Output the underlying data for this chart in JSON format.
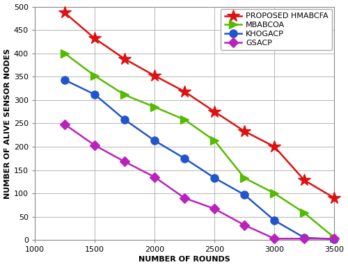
{
  "xlabel": "NUMBER OF ROUNDS",
  "ylabel": "NUMBER OF ALIVE SENSOR NODES",
  "xlim": [
    1000,
    3500
  ],
  "ylim": [
    0,
    500
  ],
  "xticks": [
    1000,
    1500,
    2000,
    2500,
    3000,
    3500
  ],
  "yticks": [
    0,
    50,
    100,
    150,
    200,
    250,
    300,
    350,
    400,
    450,
    500
  ],
  "series": [
    {
      "label": "PROPOSED HMABCFA",
      "color": "#dd1111",
      "marker": "*",
      "markersize": 13,
      "linewidth": 1.8,
      "x": [
        1250,
        1500,
        1750,
        2000,
        2250,
        2500,
        2750,
        3000,
        3250,
        3500
      ],
      "y": [
        487,
        432,
        388,
        352,
        318,
        275,
        233,
        200,
        128,
        90
      ]
    },
    {
      "label": "MBABCOA",
      "color": "#55bb00",
      "marker": ">",
      "markersize": 9,
      "linewidth": 1.8,
      "x": [
        1250,
        1500,
        1750,
        2000,
        2250,
        2500,
        2750,
        3000,
        3250,
        3500
      ],
      "y": [
        400,
        352,
        311,
        285,
        258,
        213,
        133,
        100,
        58,
        5
      ]
    },
    {
      "label": "KHOGACP",
      "color": "#2255cc",
      "marker": "o",
      "markersize": 8,
      "linewidth": 1.8,
      "x": [
        1250,
        1500,
        1750,
        2000,
        2250,
        2500,
        2750,
        3000,
        3250,
        3500
      ],
      "y": [
        343,
        312,
        258,
        213,
        175,
        133,
        97,
        42,
        5,
        2
      ]
    },
    {
      "label": "GSACP",
      "color": "#bb22bb",
      "marker": "D",
      "markersize": 7,
      "linewidth": 1.8,
      "x": [
        1250,
        1500,
        1750,
        2000,
        2250,
        2500,
        2750,
        3000,
        3250,
        3500
      ],
      "y": [
        248,
        203,
        168,
        135,
        90,
        67,
        32,
        3,
        3,
        3
      ]
    }
  ],
  "legend_loc": "upper right",
  "grid_color": "#aaaaaa",
  "background_color": "#ffffff",
  "axes_edgecolor": "#888888",
  "label_fontsize": 8,
  "tick_fontsize": 8,
  "legend_fontsize": 8
}
